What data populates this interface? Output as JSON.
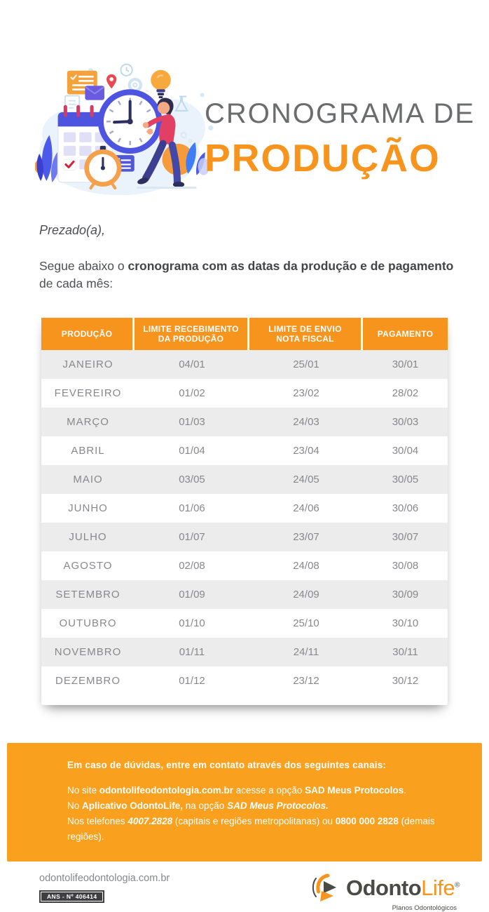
{
  "header": {
    "title_line1": "CRONOGRAMA DE",
    "title_line2": "PRODUÇÃO",
    "illustration": "clock-calendar-person-illustration"
  },
  "intro": {
    "salutation": "Prezado(a),",
    "para_normal1": "Segue abaixo o ",
    "para_bold": "cronograma com as datas da produção e de pagamento",
    "para_normal2": " de cada mês:"
  },
  "table": {
    "headers": [
      {
        "line1": "PRODUÇÃO",
        "line2": ""
      },
      {
        "line1": "LIMITE RECEBIMENTO",
        "line2": "DA PRODUÇÃO"
      },
      {
        "line1": "LIMITE DE ENVIO",
        "line2": "NOTA FISCAL"
      },
      {
        "line1": "PAGAMENTO",
        "line2": ""
      }
    ],
    "rows": [
      [
        "JANEIRO",
        "04/01",
        "25/01",
        "30/01"
      ],
      [
        "FEVEREIRO",
        "01/02",
        "23/02",
        "28/02"
      ],
      [
        "MARÇO",
        "01/03",
        "24/03",
        "30/03"
      ],
      [
        "ABRIL",
        "01/04",
        "23/04",
        "30/04"
      ],
      [
        "MAIO",
        "03/05",
        "24/05",
        "30/05"
      ],
      [
        "JUNHO",
        "01/06",
        "24/06",
        "30/06"
      ],
      [
        "JULHO",
        "01/07",
        "23/07",
        "30/07"
      ],
      [
        "AGOSTO",
        "02/08",
        "24/08",
        "30/08"
      ],
      [
        "SETEMBRO",
        "01/09",
        "24/09",
        "30/09"
      ],
      [
        "OUTUBRO",
        "01/10",
        "25/10",
        "30/10"
      ],
      [
        "NOVEMBRO",
        "01/11",
        "24/11",
        "30/11"
      ],
      [
        "DEZEMBRO",
        "01/12",
        "23/12",
        "30/12"
      ]
    ]
  },
  "contact": {
    "heading": "Em caso de dúvidas, entre em contato através dos seguintes canais:",
    "l1a": "No site ",
    "l1b": "odontolifeodontologia.com.br",
    "l1c": " acesse a opção ",
    "l1d": "SAD Meus Protocolos",
    "l1e": ".",
    "l2a": "No ",
    "l2b": "Aplicativo OdontoLife,",
    "l2c": " na opção ",
    "l2d": "SAD Meus Protocolos.",
    "l3a": "Nos telefones ",
    "l3b": "4007.2828",
    "l3c": " (capitais e regiões metropolitanas) ou ",
    "l3d": "0800 000 2828",
    "l3e": " (demais regiões)."
  },
  "footer": {
    "website": "odontolifeodontologia.com.br",
    "ans_badge": "ANS - Nº 406414",
    "logo": {
      "mark": "odontolife-logo-mark",
      "word_dark": "Odonto",
      "word_orange": "Life",
      "registered": "®",
      "tagline": "Planos Odontológicos"
    }
  },
  "colors": {
    "accent_orange": "#F7941E",
    "box_orange": "#F9A01E",
    "title_gray": "#6B6C6E",
    "body_text": "#4D4F53",
    "table_text": "#87888B",
    "row_gray": "#ECECEC",
    "badge_dark": "#3F3F41",
    "logo_dark": "#4A4A46"
  }
}
